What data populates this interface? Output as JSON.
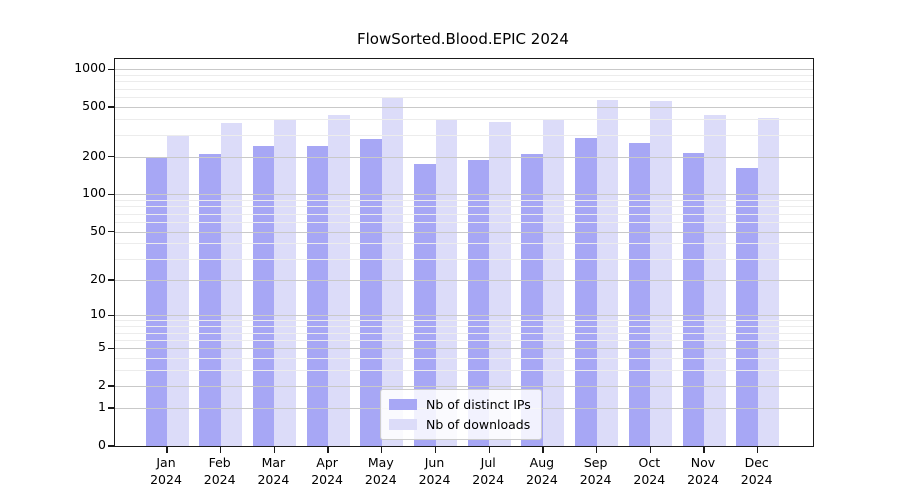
{
  "chart_data": {
    "type": "bar",
    "title": "FlowSorted.Blood.EPIC 2024",
    "x_year": "2024",
    "months": [
      "Jan",
      "Feb",
      "Mar",
      "Apr",
      "May",
      "Jun",
      "Jul",
      "Aug",
      "Sep",
      "Oct",
      "Nov",
      "Dec"
    ],
    "series": [
      {
        "name": "Nb of distinct IPs",
        "color": "#a7a7f5",
        "values": [
          198,
          209,
          244,
          245,
          278,
          174,
          188,
          211,
          280,
          258,
          215,
          163
        ]
      },
      {
        "name": "Nb of downloads",
        "color": "#dcdcf9",
        "values": [
          293,
          371,
          398,
          428,
          600,
          391,
          380,
          402,
          568,
          556,
          428,
          410
        ]
      }
    ],
    "y_ticks": [
      0,
      1,
      2,
      5,
      10,
      20,
      50,
      100,
      200,
      500,
      1000
    ],
    "scale": "log10(value+1)",
    "ylim": [
      0,
      1200
    ],
    "grid": true,
    "gridline_colors": {
      "major": "#c9c9c9",
      "minor": "#ececec"
    },
    "legend_position": "bottom-center"
  }
}
